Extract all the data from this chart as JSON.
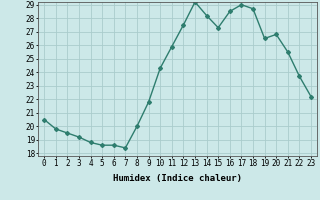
{
  "x": [
    0,
    1,
    2,
    3,
    4,
    5,
    6,
    7,
    8,
    9,
    10,
    11,
    12,
    13,
    14,
    15,
    16,
    17,
    18,
    19,
    20,
    21,
    22,
    23
  ],
  "y": [
    20.5,
    19.8,
    19.5,
    19.2,
    18.8,
    18.6,
    18.6,
    18.4,
    20.0,
    21.8,
    24.3,
    25.9,
    27.5,
    29.2,
    28.2,
    27.3,
    28.5,
    29.0,
    28.7,
    26.5,
    26.8,
    25.5,
    23.7,
    22.2
  ],
  "xlabel": "Humidex (Indice chaleur)",
  "ylim": [
    18,
    29
  ],
  "xlim": [
    -0.5,
    23.5
  ],
  "yticks": [
    18,
    19,
    20,
    21,
    22,
    23,
    24,
    25,
    26,
    27,
    28,
    29
  ],
  "xticks": [
    0,
    1,
    2,
    3,
    4,
    5,
    6,
    7,
    8,
    9,
    10,
    11,
    12,
    13,
    14,
    15,
    16,
    17,
    18,
    19,
    20,
    21,
    22,
    23
  ],
  "line_color": "#2e7d6e",
  "marker": "D",
  "marker_size": 2.0,
  "line_width": 1.0,
  "bg_color": "#cce8e8",
  "grid_color": "#aacccc",
  "axis_fontsize": 6.5,
  "tick_fontsize": 5.5
}
